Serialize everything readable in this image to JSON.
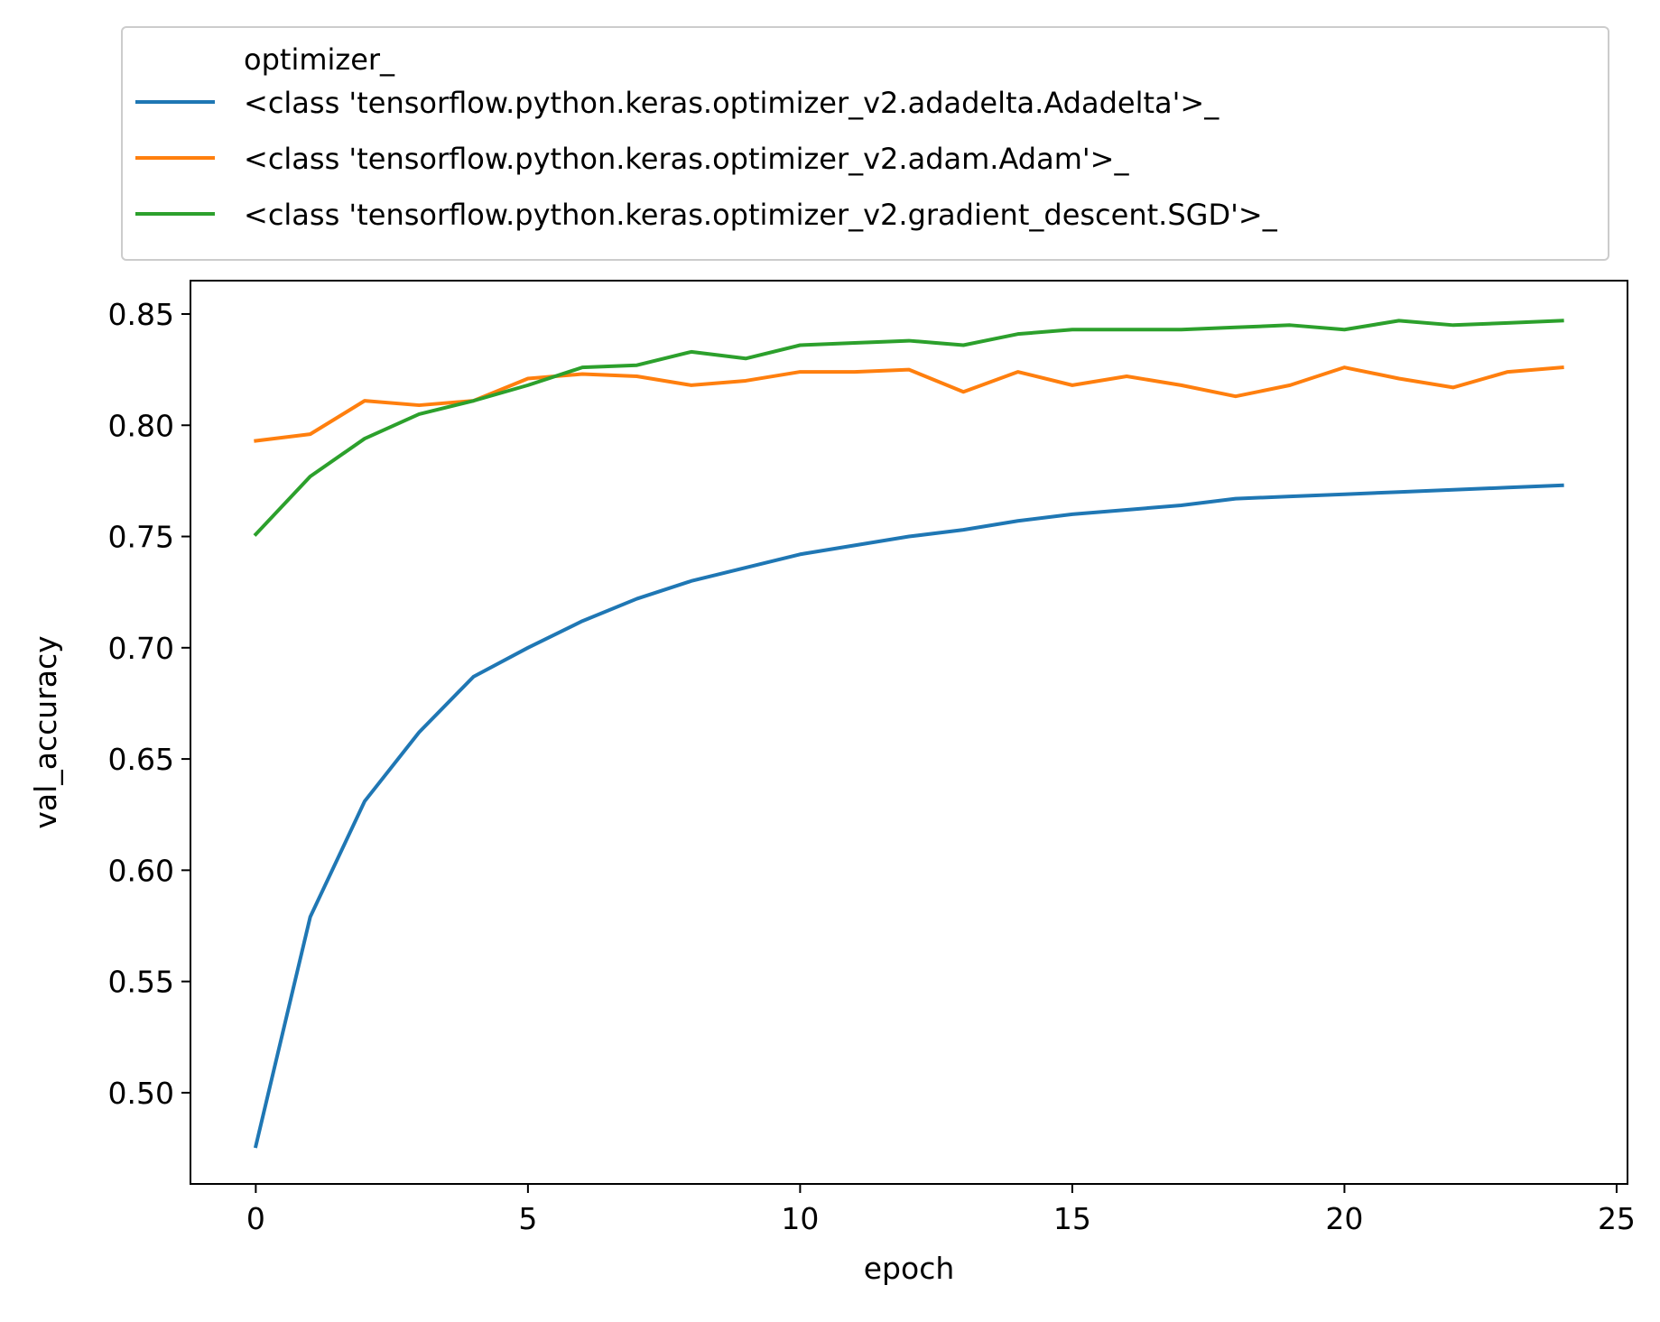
{
  "chart_data": {
    "type": "line",
    "title": "",
    "xlabel": "epoch",
    "ylabel": "val_accuracy",
    "xlim": [
      -1.2,
      25.2
    ],
    "ylim": [
      0.459,
      0.865
    ],
    "xticks": [
      0,
      5,
      10,
      15,
      20,
      25
    ],
    "xtick_labels": [
      "0",
      "5",
      "10",
      "15",
      "20",
      "25"
    ],
    "yticks": [
      0.5,
      0.55,
      0.6,
      0.65,
      0.7,
      0.75,
      0.8,
      0.85
    ],
    "ytick_labels": [
      "0.50",
      "0.55",
      "0.60",
      "0.65",
      "0.70",
      "0.75",
      "0.80",
      "0.85"
    ],
    "grid": false,
    "legend": {
      "title": "optimizer_",
      "placement": "top, above plot"
    },
    "x": [
      0,
      1,
      2,
      3,
      4,
      5,
      6,
      7,
      8,
      9,
      10,
      11,
      12,
      13,
      14,
      15,
      16,
      17,
      18,
      19,
      20,
      21,
      22,
      23,
      24
    ],
    "series": [
      {
        "name": "<class 'tensorflow.python.keras.optimizer_v2.adadelta.Adadelta'>_",
        "color": "#1f77b4",
        "values": [
          0.476,
          0.579,
          0.631,
          0.662,
          0.687,
          0.7,
          0.712,
          0.722,
          0.73,
          0.736,
          0.742,
          0.746,
          0.75,
          0.753,
          0.757,
          0.76,
          0.762,
          0.764,
          0.767,
          0.768,
          0.769,
          0.77,
          0.771,
          0.772,
          0.773
        ]
      },
      {
        "name": "<class 'tensorflow.python.keras.optimizer_v2.adam.Adam'>_",
        "color": "#ff7f0e",
        "values": [
          0.793,
          0.796,
          0.811,
          0.809,
          0.811,
          0.821,
          0.823,
          0.822,
          0.818,
          0.82,
          0.824,
          0.824,
          0.825,
          0.815,
          0.824,
          0.818,
          0.822,
          0.818,
          0.813,
          0.818,
          0.826,
          0.821,
          0.817,
          0.824,
          0.826
        ]
      },
      {
        "name": "<class 'tensorflow.python.keras.optimizer_v2.gradient_descent.SGD'>_",
        "color": "#2ca02c",
        "values": [
          0.751,
          0.777,
          0.794,
          0.805,
          0.811,
          0.818,
          0.826,
          0.827,
          0.833,
          0.83,
          0.836,
          0.837,
          0.838,
          0.836,
          0.841,
          0.843,
          0.843,
          0.843,
          0.844,
          0.845,
          0.843,
          0.847,
          0.845,
          0.846,
          0.847
        ]
      }
    ]
  }
}
